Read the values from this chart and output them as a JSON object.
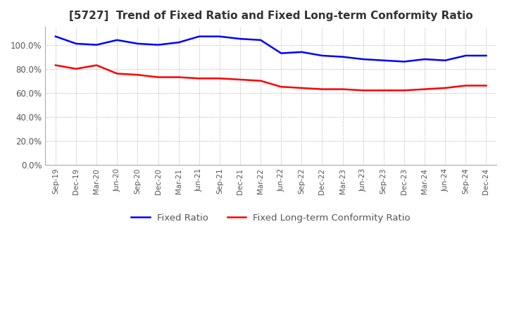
{
  "title": "[5727]  Trend of Fixed Ratio and Fixed Long-term Conformity Ratio",
  "x_labels": [
    "Sep-19",
    "Dec-19",
    "Mar-20",
    "Jun-20",
    "Sep-20",
    "Dec-20",
    "Mar-21",
    "Jun-21",
    "Sep-21",
    "Dec-21",
    "Mar-22",
    "Jun-22",
    "Sep-22",
    "Dec-22",
    "Mar-23",
    "Jun-23",
    "Sep-23",
    "Dec-23",
    "Mar-24",
    "Jun-24",
    "Sep-24",
    "Dec-24"
  ],
  "fixed_ratio": [
    1.07,
    1.01,
    1.0,
    1.04,
    1.01,
    1.0,
    1.02,
    1.07,
    1.07,
    1.05,
    1.04,
    0.93,
    0.94,
    0.91,
    0.9,
    0.88,
    0.87,
    0.86,
    0.88,
    0.87,
    0.91,
    0.91
  ],
  "fixed_lt_ratio": [
    0.83,
    0.8,
    0.83,
    0.76,
    0.75,
    0.73,
    0.73,
    0.72,
    0.72,
    0.71,
    0.7,
    0.65,
    0.64,
    0.63,
    0.63,
    0.62,
    0.62,
    0.62,
    0.63,
    0.64,
    0.66,
    0.66
  ],
  "fixed_ratio_color": "#0000FF",
  "fixed_lt_ratio_color": "#FF0000",
  "ylim": [
    0.0,
    1.15
  ],
  "yticks": [
    0.0,
    0.2,
    0.4,
    0.6,
    0.8,
    1.0
  ],
  "background_color": "#FFFFFF",
  "grid_color": "#AAAAAA",
  "title_fontsize": 11,
  "legend_labels": [
    "Fixed Ratio",
    "Fixed Long-term Conformity Ratio"
  ]
}
